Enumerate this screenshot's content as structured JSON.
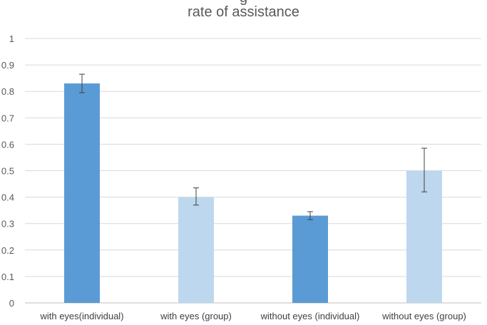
{
  "chart_data": {
    "type": "bar",
    "title_top_fragment": "g",
    "title": "rate of assistance",
    "categories": [
      "with eyes(individual)",
      "with eyes (group)",
      "without eyes (individual)",
      "without eyes (group)"
    ],
    "values": [
      0.83,
      0.4,
      0.33,
      0.5
    ],
    "errors_low": [
      0.035,
      0.03,
      0.015,
      0.08
    ],
    "errors_high": [
      0.035,
      0.035,
      0.015,
      0.085
    ],
    "colors": [
      "#5b9bd5",
      "#bdd7ee",
      "#5b9bd5",
      "#bdd7ee"
    ],
    "ylim": [
      0,
      1
    ],
    "yticks": [
      "0",
      "0.1",
      "0.2",
      "0.3",
      "0.4",
      "0.5",
      "0.6",
      "0.7",
      "0.8",
      "0.9",
      "1"
    ],
    "grid": true,
    "xlabel": "",
    "ylabel": ""
  }
}
